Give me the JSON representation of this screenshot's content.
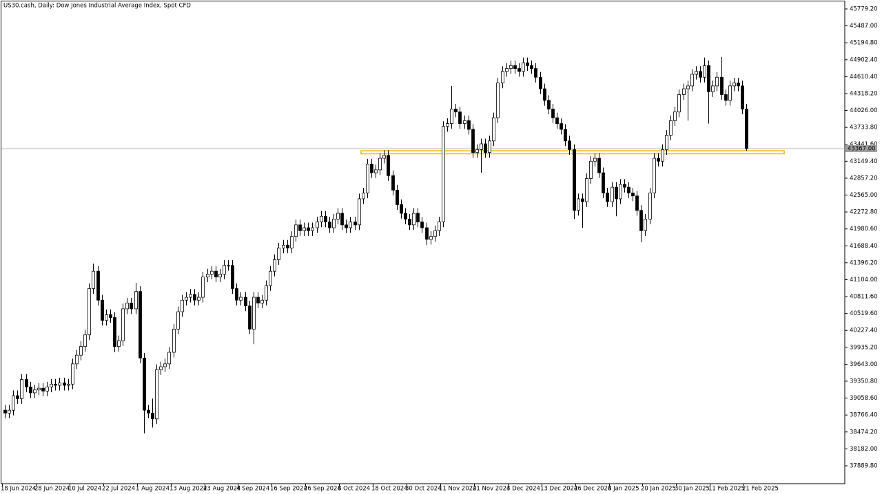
{
  "chart_data": {
    "type": "candlestick",
    "title": "US30.cash, Daily:  Dow Jones Industrial Average Index, Spot CFD",
    "categories": [
      "18 Jun 2024",
      null,
      null,
      null,
      null,
      null,
      null,
      null,
      "28 Jun 2024",
      null,
      null,
      null,
      null,
      null,
      null,
      null,
      "10 Jul 2024",
      null,
      null,
      null,
      null,
      null,
      null,
      null,
      "22 Jul 2024",
      null,
      null,
      null,
      null,
      null,
      null,
      null,
      "1 Aug 2024",
      null,
      null,
      null,
      null,
      null,
      null,
      null,
      "13 Aug 2024",
      null,
      null,
      null,
      null,
      null,
      null,
      null,
      "23 Aug 2024",
      null,
      null,
      null,
      null,
      null,
      null,
      null,
      "4 Sep 2024",
      null,
      null,
      null,
      null,
      null,
      null,
      null,
      "16 Sep 2024",
      null,
      null,
      null,
      null,
      null,
      null,
      null,
      "26 Sep 2024",
      null,
      null,
      null,
      null,
      null,
      null,
      null,
      "8 Oct 2024",
      null,
      null,
      null,
      null,
      null,
      null,
      null,
      "18 Oct 2024",
      null,
      null,
      null,
      null,
      null,
      null,
      null,
      "30 Oct 2024",
      null,
      null,
      null,
      null,
      null,
      null,
      null,
      "11 Nov 2024",
      null,
      null,
      null,
      null,
      null,
      null,
      null,
      "21 Nov 2024",
      null,
      null,
      null,
      null,
      null,
      null,
      null,
      "3 Dec 2024",
      null,
      null,
      null,
      null,
      null,
      null,
      null,
      "13 Dec 2024",
      null,
      null,
      null,
      null,
      null,
      null,
      null,
      "26 Dec 2024",
      null,
      null,
      null,
      null,
      null,
      null,
      null,
      "8 Jan 2025",
      null,
      null,
      null,
      null,
      null,
      null,
      null,
      "20 Jan 2025",
      null,
      null,
      null,
      null,
      null,
      null,
      null,
      "30 Jan 2025",
      null,
      null,
      null,
      null,
      null,
      null,
      null,
      "11 Feb 2025",
      null,
      null,
      null,
      null,
      null,
      null,
      null,
      "21 Feb 2025"
    ],
    "open": [
      38850,
      38800,
      38850,
      39100,
      39050,
      39380,
      39250,
      39150,
      39200,
      39230,
      39180,
      39250,
      39300,
      39280,
      39320,
      39280,
      39300,
      39650,
      39800,
      39950,
      40150,
      40950,
      41250,
      40750,
      40400,
      40500,
      40450,
      39950,
      40050,
      40600,
      40700,
      40600,
      40900,
      39750,
      38850,
      38800,
      38700,
      39550,
      39600,
      39650,
      39850,
      40250,
      40550,
      40750,
      40800,
      40850,
      40750,
      40800,
      41150,
      41200,
      41250,
      41150,
      41200,
      41350,
      41350,
      40950,
      40750,
      40800,
      40650,
      40250,
      40800,
      40700,
      40750,
      41000,
      41250,
      41450,
      41650,
      41700,
      41650,
      41850,
      42050,
      41950,
      42000,
      41950,
      42000,
      42100,
      42200,
      42100,
      42000,
      42150,
      42250,
      42050,
      42000,
      42100,
      42050,
      42500,
      42600,
      43100,
      42950,
      43000,
      43200,
      43250,
      42900,
      42650,
      42400,
      42250,
      42150,
      42050,
      42250,
      42100,
      42000,
      41800,
      41850,
      41950,
      42100,
      43750,
      43800,
      44050,
      44000,
      43800,
      43850,
      43700,
      43300,
      43350,
      43450,
      43300,
      43500,
      43900,
      44500,
      44700,
      44750,
      44800,
      44750,
      44700,
      44850,
      44800,
      44750,
      44600,
      44400,
      44200,
      44050,
      43900,
      43800,
      43700,
      43500,
      43350,
      42300,
      42500,
      42450,
      42850,
      43150,
      43200,
      42950,
      42600,
      42450,
      42700,
      42500,
      42750,
      42700,
      42600,
      42550,
      42300,
      41950,
      42150,
      42600,
      43200,
      43150,
      43350,
      43600,
      43850,
      44000,
      44300,
      44400,
      44450,
      44650,
      44700,
      44600,
      44800,
      44350,
      44450,
      44600,
      44300,
      44200,
      44450,
      44500,
      44450,
      44050
    ],
    "high": [
      38940,
      38940,
      39190,
      39190,
      39470,
      39470,
      39340,
      39290,
      39320,
      39320,
      39340,
      39390,
      39390,
      39410,
      39410,
      39390,
      39740,
      39890,
      40040,
      40240,
      41040,
      41380,
      41340,
      40840,
      40590,
      40590,
      40540,
      40140,
      40690,
      40790,
      40790,
      41050,
      40990,
      39840,
      38940,
      39050,
      39640,
      39690,
      39740,
      39940,
      40340,
      40640,
      40840,
      40890,
      40940,
      40940,
      40890,
      41240,
      41290,
      41340,
      41340,
      41290,
      41440,
      41440,
      41440,
      41040,
      40890,
      40890,
      40740,
      40890,
      40890,
      40840,
      41090,
      41340,
      41540,
      41740,
      41790,
      41790,
      41940,
      42140,
      42140,
      42090,
      42090,
      42090,
      42190,
      42290,
      42290,
      42190,
      42240,
      42340,
      42340,
      42140,
      42190,
      42190,
      42590,
      42690,
      43190,
      43190,
      43090,
      43290,
      43340,
      43340,
      42990,
      42740,
      42490,
      42340,
      42240,
      42340,
      42340,
      42190,
      42090,
      41940,
      42040,
      42190,
      43840,
      43890,
      44450,
      44140,
      44090,
      43940,
      43940,
      43790,
      43440,
      43540,
      43540,
      43590,
      43990,
      44590,
      44790,
      44840,
      44890,
      44890,
      44840,
      44940,
      44940,
      44890,
      44840,
      44690,
      44490,
      44290,
      44140,
      43990,
      43890,
      43790,
      43590,
      43440,
      42590,
      42590,
      42940,
      43240,
      43290,
      43290,
      43040,
      42690,
      42790,
      42790,
      42840,
      42840,
      42790,
      42690,
      42640,
      42390,
      42240,
      42690,
      43290,
      43290,
      43440,
      43690,
      43940,
      44090,
      44390,
      44490,
      44540,
      44740,
      44790,
      44790,
      44940,
      44890,
      44540,
      44690,
      44950,
      44390,
      44540,
      44590,
      44590,
      44540,
      44140
    ],
    "low": [
      38710,
      38710,
      38760,
      38960,
      38960,
      39160,
      39060,
      39060,
      39110,
      39090,
      39090,
      39160,
      39190,
      39190,
      39190,
      39190,
      39210,
      39560,
      39710,
      39860,
      40060,
      40860,
      40660,
      40310,
      40310,
      40360,
      39850,
      39860,
      39960,
      40510,
      40510,
      40510,
      39660,
      38450,
      38710,
      38550,
      38610,
      39460,
      39510,
      39560,
      39760,
      40160,
      40460,
      40660,
      40710,
      40660,
      40660,
      40710,
      41060,
      41110,
      41060,
      41060,
      41110,
      41260,
      40860,
      40660,
      40660,
      40560,
      40160,
      39990,
      40610,
      40610,
      40660,
      40910,
      41160,
      41360,
      41560,
      41560,
      41560,
      41760,
      41860,
      41860,
      41860,
      41860,
      41910,
      42010,
      42010,
      41910,
      41910,
      42060,
      41960,
      41910,
      41910,
      41960,
      41960,
      42410,
      42510,
      42860,
      42860,
      42910,
      43110,
      42810,
      42560,
      42310,
      42160,
      42060,
      41960,
      41960,
      42010,
      41910,
      41700,
      41710,
      41760,
      41860,
      42010,
      43660,
      43710,
      43910,
      43710,
      43710,
      43610,
      43210,
      43210,
      42950,
      43210,
      43210,
      43410,
      43810,
      44410,
      44610,
      44660,
      44660,
      44610,
      44610,
      44710,
      44660,
      44510,
      44310,
      44110,
      43960,
      43810,
      43710,
      43610,
      43410,
      43260,
      42150,
      42210,
      42000,
      42360,
      42760,
      43060,
      42860,
      42510,
      42360,
      42360,
      42200,
      42410,
      42610,
      42510,
      42460,
      42210,
      41750,
      41860,
      42060,
      42510,
      43060,
      43060,
      43260,
      43510,
      43760,
      43910,
      44210,
      43850,
      44360,
      44560,
      44510,
      44510,
      43800,
      44260,
      44360,
      44210,
      44110,
      44110,
      44360,
      44360,
      43960,
      43330
    ],
    "close": [
      38800,
      38850,
      39100,
      39050,
      39380,
      39250,
      39150,
      39200,
      39230,
      39180,
      39250,
      39300,
      39280,
      39320,
      39280,
      39300,
      39650,
      39800,
      39950,
      40150,
      40950,
      41250,
      40750,
      40400,
      40500,
      40450,
      39950,
      40050,
      40600,
      40700,
      40600,
      40900,
      39750,
      38850,
      38800,
      38700,
      39550,
      39600,
      39650,
      39850,
      40250,
      40550,
      40750,
      40800,
      40850,
      40750,
      40800,
      41150,
      41200,
      41250,
      41150,
      41200,
      41350,
      41350,
      40950,
      40750,
      40800,
      40650,
      40250,
      40800,
      40700,
      40750,
      41000,
      41250,
      41450,
      41650,
      41700,
      41650,
      41850,
      42050,
      41950,
      42000,
      41950,
      42000,
      42100,
      42200,
      42100,
      42000,
      42150,
      42250,
      42050,
      42000,
      42100,
      42050,
      42500,
      42600,
      43100,
      42950,
      43000,
      43200,
      43250,
      42900,
      42650,
      42400,
      42250,
      42150,
      42050,
      42250,
      42100,
      42000,
      41800,
      41850,
      41950,
      42100,
      43750,
      43800,
      44050,
      44000,
      43800,
      43850,
      43700,
      43300,
      43350,
      43450,
      43300,
      43500,
      43900,
      44500,
      44700,
      44750,
      44800,
      44750,
      44700,
      44850,
      44800,
      44750,
      44600,
      44400,
      44200,
      44050,
      43900,
      43800,
      43700,
      43500,
      43350,
      42300,
      42500,
      42450,
      42850,
      43150,
      43200,
      42950,
      42600,
      42450,
      42700,
      42500,
      42750,
      42700,
      42600,
      42550,
      42300,
      41950,
      42150,
      42600,
      43200,
      43150,
      43350,
      43600,
      43850,
      44000,
      44300,
      44400,
      44450,
      44650,
      44700,
      44600,
      44800,
      44350,
      44450,
      44600,
      44300,
      44200,
      44450,
      44500,
      44450,
      44050,
      43367
    ],
    "up_color": "#ffffff",
    "down_color": "#000000",
    "outline_color": "#000000",
    "ylim": [
      37580.5,
      45933.7
    ],
    "yticks": [
      {
        "value": 45779.2,
        "label": "45779.20"
      },
      {
        "value": 45487,
        "label": "45487.00"
      },
      {
        "value": 45194.8,
        "label": "45194.80"
      },
      {
        "value": 44902.4,
        "label": "44902.40"
      },
      {
        "value": 44610.4,
        "label": "44610.40"
      },
      {
        "value": 44318.2,
        "label": "44318.20"
      },
      {
        "value": 44026,
        "label": "44026.00"
      },
      {
        "value": 43733.8,
        "label": "43733.80"
      },
      {
        "value": 43441.6,
        "label": "43441.60"
      },
      {
        "value": 43149.4,
        "label": "43149.40"
      },
      {
        "value": 42857.2,
        "label": "42857.20"
      },
      {
        "value": 42565,
        "label": "42565.00"
      },
      {
        "value": 42272.8,
        "label": "42272.80"
      },
      {
        "value": 41980.6,
        "label": "41980.60"
      },
      {
        "value": 41688.4,
        "label": "41688.40"
      },
      {
        "value": 41396.2,
        "label": "41396.20"
      },
      {
        "value": 41104,
        "label": "41104.00"
      },
      {
        "value": 40811.6,
        "label": "40811.60"
      },
      {
        "value": 40519.6,
        "label": "40519.60"
      },
      {
        "value": 40227.4,
        "label": "40227.40"
      },
      {
        "value": 39935.2,
        "label": "39935.20"
      },
      {
        "value": 39643,
        "label": "39643.00"
      },
      {
        "value": 39350.8,
        "label": "39350.80"
      },
      {
        "value": 39058.6,
        "label": "39058.60"
      },
      {
        "value": 38766.4,
        "label": "38766.40"
      },
      {
        "value": 38474.2,
        "label": "38474.20"
      },
      {
        "value": 38182,
        "label": "38182.00"
      },
      {
        "value": 37889.8,
        "label": "37889.80"
      }
    ],
    "current_price": {
      "value": 43367,
      "label": "43367.00"
    },
    "support_zone": {
      "high": 43330,
      "low": 43280,
      "color": "#f5c542"
    },
    "grid": false
  }
}
